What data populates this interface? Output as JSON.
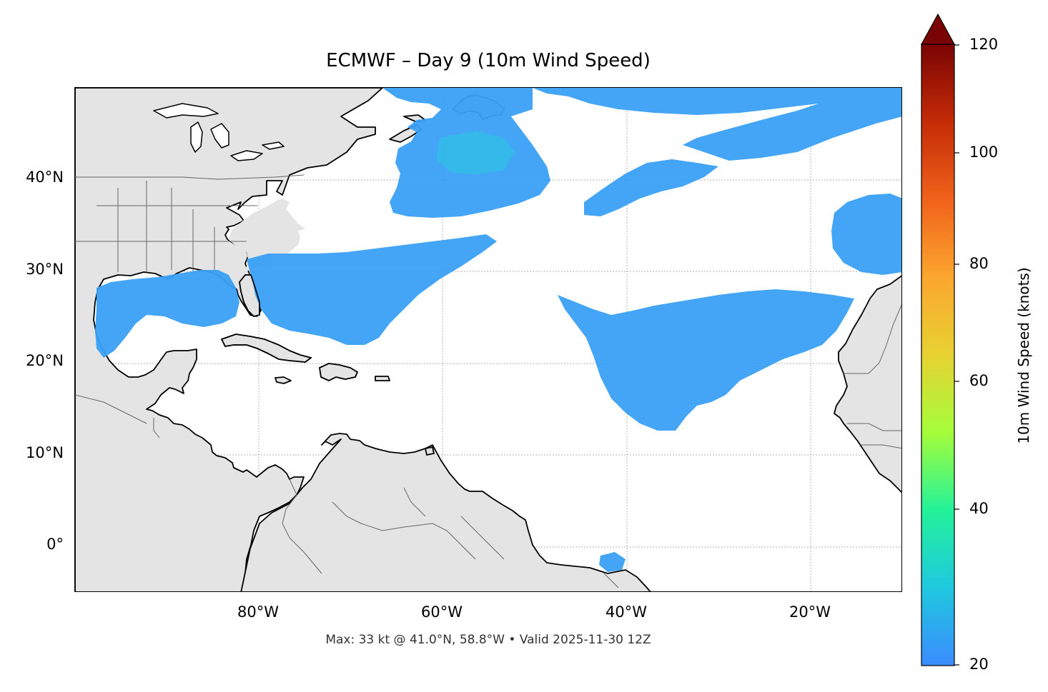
{
  "map": {
    "title": "ECMWF – Day 9 (10m Wind Speed)",
    "footer": "Max: 33 kt @ 41.0°N, 58.8°W • Valid 2025-11-30 12Z",
    "lat_labels": [
      "40°N",
      "30°N",
      "20°N",
      "10°N",
      "0°"
    ],
    "lon_labels": [
      "80°W",
      "60°W",
      "40°W",
      "20°W"
    ],
    "extent": {
      "lon_min": -100,
      "lon_max": -10,
      "lat_min": -5,
      "lat_max": 50
    },
    "variable": "10m Wind Speed",
    "units": "knots",
    "max_value_kt": 33,
    "max_location": {
      "lat": 41.0,
      "lon": -58.8
    },
    "valid_time": "2025-11-30 12Z",
    "land_color": "#e4e4e4",
    "ocean_color": "#ffffff",
    "coastline_color": "#000000",
    "border_color": "#666666",
    "gridline_color": "#b0b0b0"
  },
  "colorbar": {
    "label": "10m Wind Speed (knots)",
    "ticks": [
      "20",
      "40",
      "60",
      "80",
      "100",
      "120"
    ],
    "min": 20,
    "max": 120,
    "extend": "max",
    "colormap": [
      "#3b8cff",
      "#1fc8de",
      "#23f29a",
      "#a5fd3a",
      "#e7d232",
      "#fba62e",
      "#f0621a",
      "#c42c06",
      "#7a0403"
    ]
  }
}
